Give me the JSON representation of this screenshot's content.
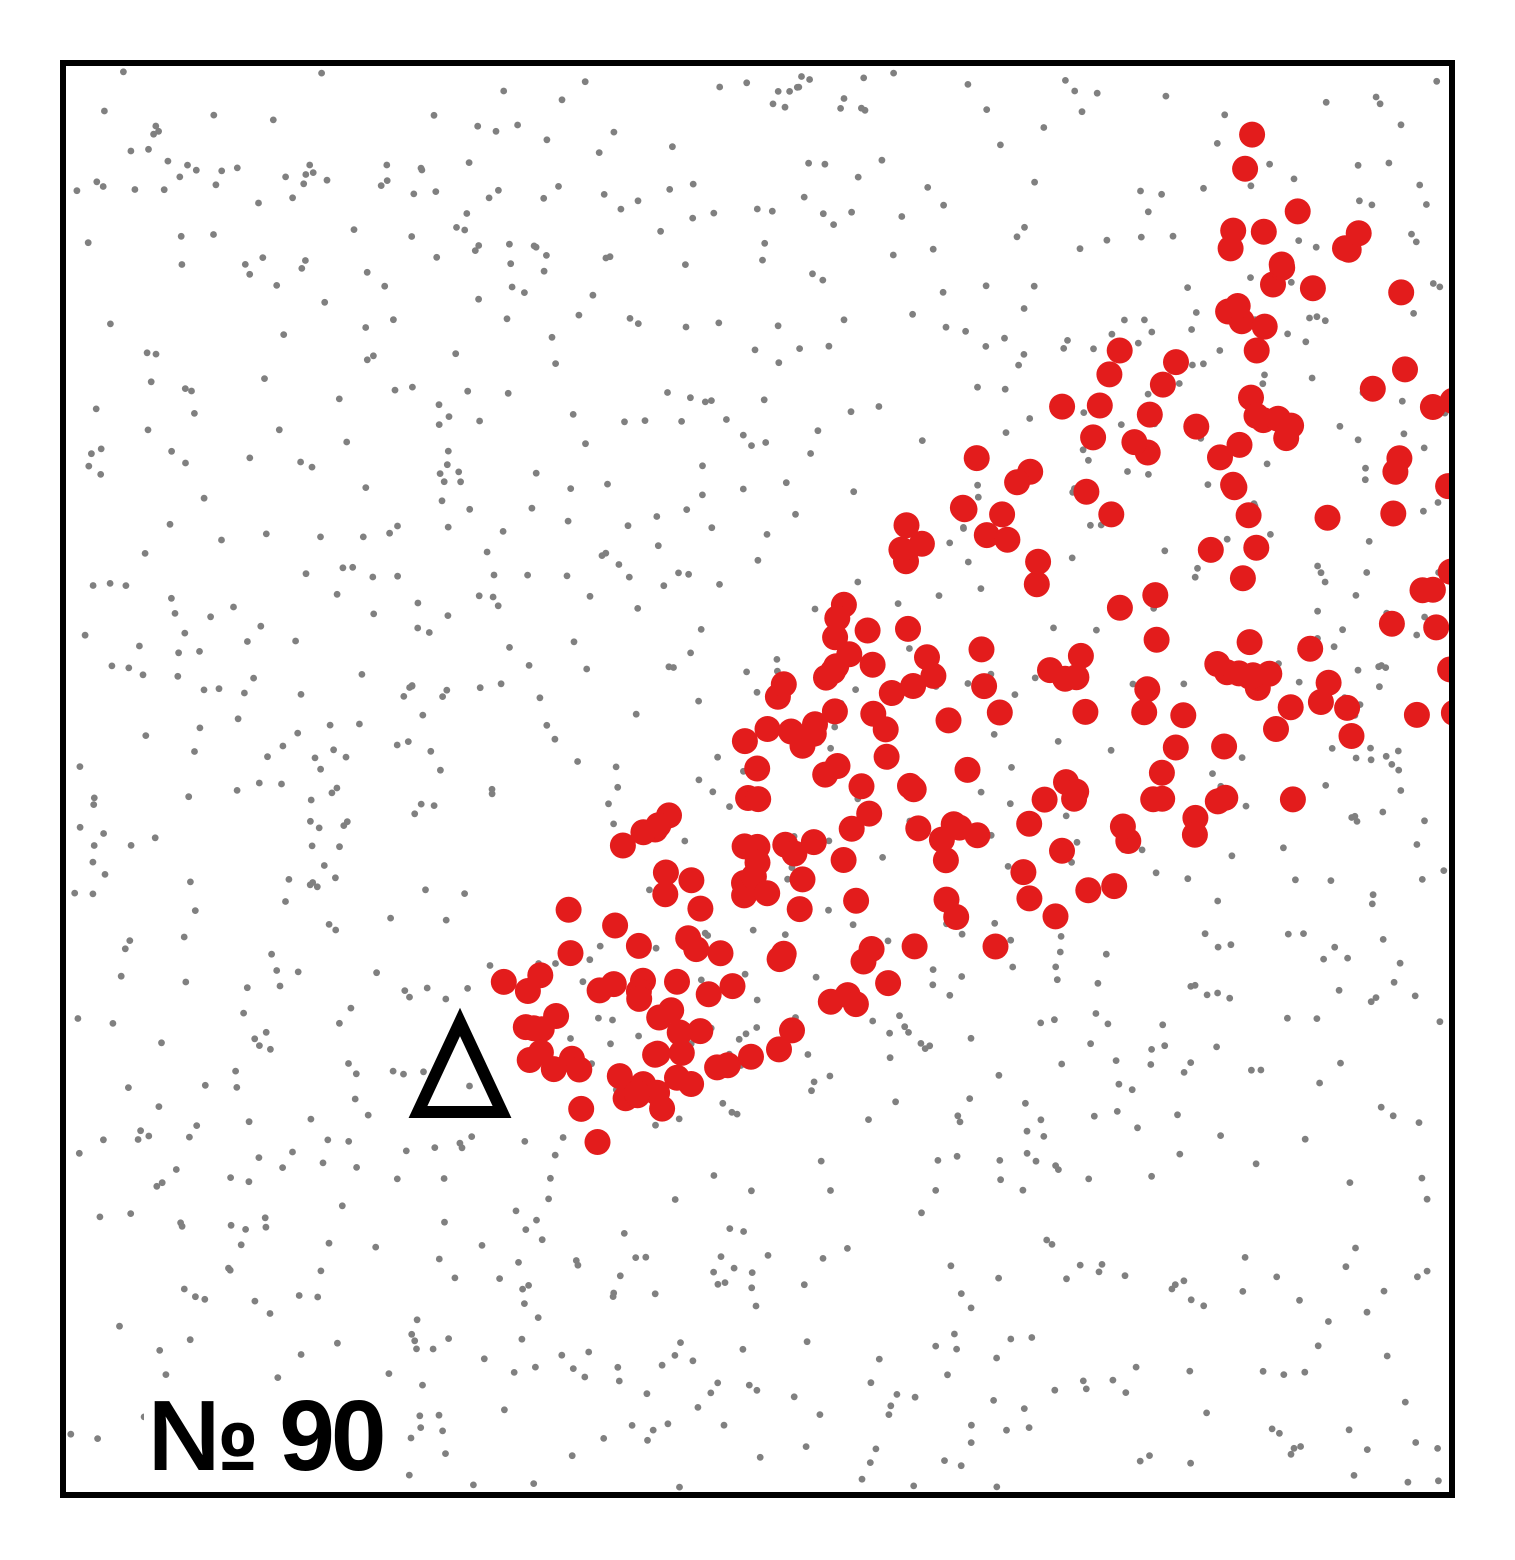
{
  "plate": {
    "label": "№ 90"
  },
  "colors": {
    "frame": "#000000",
    "background": "#ffffff",
    "noise_dot": "#808080",
    "cluster_dot": "#e31c1c",
    "marker": "#000000"
  },
  "marker": {
    "shape": "triangle-outline",
    "icon": "triangle-icon"
  },
  "noise_dots": {
    "count": 1100,
    "seed": 90
  },
  "cluster_dots": {
    "count": 260,
    "seed": 7
  }
}
